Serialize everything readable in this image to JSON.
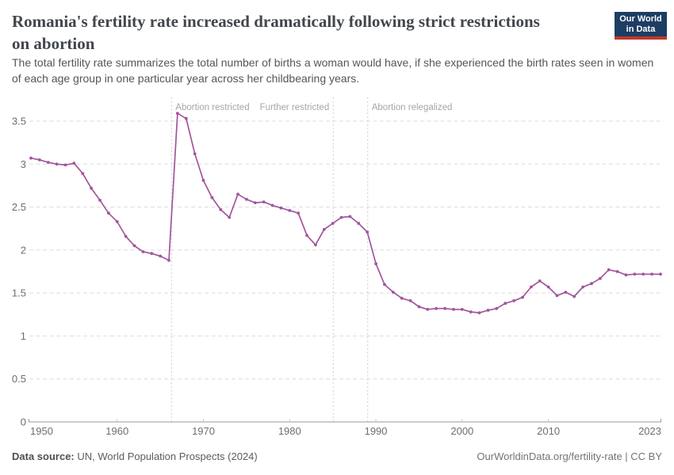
{
  "header": {
    "title": "Romania's fertility rate increased dramatically following strict restrictions on abortion",
    "subtitle": "The total fertility rate summarizes the total number of births a woman would have, if she experienced the birth rates seen in women of each age group in one particular year across her childbearing years.",
    "logo": {
      "line1": "Our World",
      "line2": "in Data"
    }
  },
  "chart_data": {
    "type": "line",
    "title": "Romania's fertility rate increased dramatically following strict restrictions on abortion",
    "xlabel": "",
    "ylabel": "",
    "xlim": [
      1950,
      2023
    ],
    "ylim": [
      0,
      3.5
    ],
    "xticks": [
      1950,
      1960,
      1970,
      1980,
      1990,
      2000,
      2010,
      2023
    ],
    "yticks": [
      0,
      0.5,
      1,
      1.5,
      2,
      2.5,
      3,
      3.5
    ],
    "grid": "horizontal-dashed",
    "legend": "none",
    "line_color": "#a2559c",
    "series": [
      {
        "name": "Romania",
        "x": [
          1950,
          1951,
          1952,
          1953,
          1954,
          1955,
          1956,
          1957,
          1958,
          1959,
          1960,
          1961,
          1962,
          1963,
          1964,
          1965,
          1966,
          1967,
          1968,
          1969,
          1970,
          1971,
          1972,
          1973,
          1974,
          1975,
          1976,
          1977,
          1978,
          1979,
          1980,
          1981,
          1982,
          1983,
          1984,
          1985,
          1986,
          1987,
          1988,
          1989,
          1990,
          1991,
          1992,
          1993,
          1994,
          1995,
          1996,
          1997,
          1998,
          1999,
          2000,
          2001,
          2002,
          2003,
          2004,
          2005,
          2006,
          2007,
          2008,
          2009,
          2010,
          2011,
          2012,
          2013,
          2014,
          2015,
          2016,
          2017,
          2018,
          2019,
          2020,
          2021,
          2022,
          2023
        ],
        "values": [
          3.07,
          3.05,
          3.02,
          3.0,
          2.99,
          3.01,
          2.89,
          2.72,
          2.58,
          2.43,
          2.33,
          2.16,
          2.05,
          1.98,
          1.96,
          1.93,
          1.88,
          3.59,
          3.53,
          3.12,
          2.81,
          2.61,
          2.47,
          2.38,
          2.65,
          2.59,
          2.55,
          2.56,
          2.52,
          2.49,
          2.46,
          2.43,
          2.17,
          2.06,
          2.24,
          2.31,
          2.38,
          2.39,
          2.31,
          2.21,
          1.84,
          1.6,
          1.51,
          1.44,
          1.41,
          1.34,
          1.31,
          1.32,
          1.32,
          1.31,
          1.31,
          1.28,
          1.27,
          1.3,
          1.32,
          1.38,
          1.41,
          1.45,
          1.57,
          1.64,
          1.57,
          1.47,
          1.51,
          1.46,
          1.57,
          1.61,
          1.67,
          1.77,
          1.75,
          1.71,
          1.72,
          1.72,
          1.72,
          1.72
        ]
      }
    ],
    "annotations": [
      {
        "year": 1966.3,
        "label": "Abortion restricted",
        "side": "right"
      },
      {
        "year": 1985.05,
        "label": "Further restricted",
        "side": "left"
      },
      {
        "year": 1989.05,
        "label": "Abortion relegalized",
        "side": "right"
      }
    ]
  },
  "footer": {
    "source_label": "Data source:",
    "source_text": "UN, World Population Prospects (2024)",
    "credit": "OurWorldinData.org/fertility-rate | CC BY"
  },
  "colors": {
    "line": "#a2559c",
    "grid": "#dcdcdc",
    "axis": "#9a9a9a",
    "tick_label": "#6e6e6e",
    "annotation_line": "#cccccc",
    "annotation_text": "#a6a6a6",
    "logo_bg": "#1d3d63",
    "logo_bar": "#bd392c",
    "title_text": "#41464c"
  }
}
